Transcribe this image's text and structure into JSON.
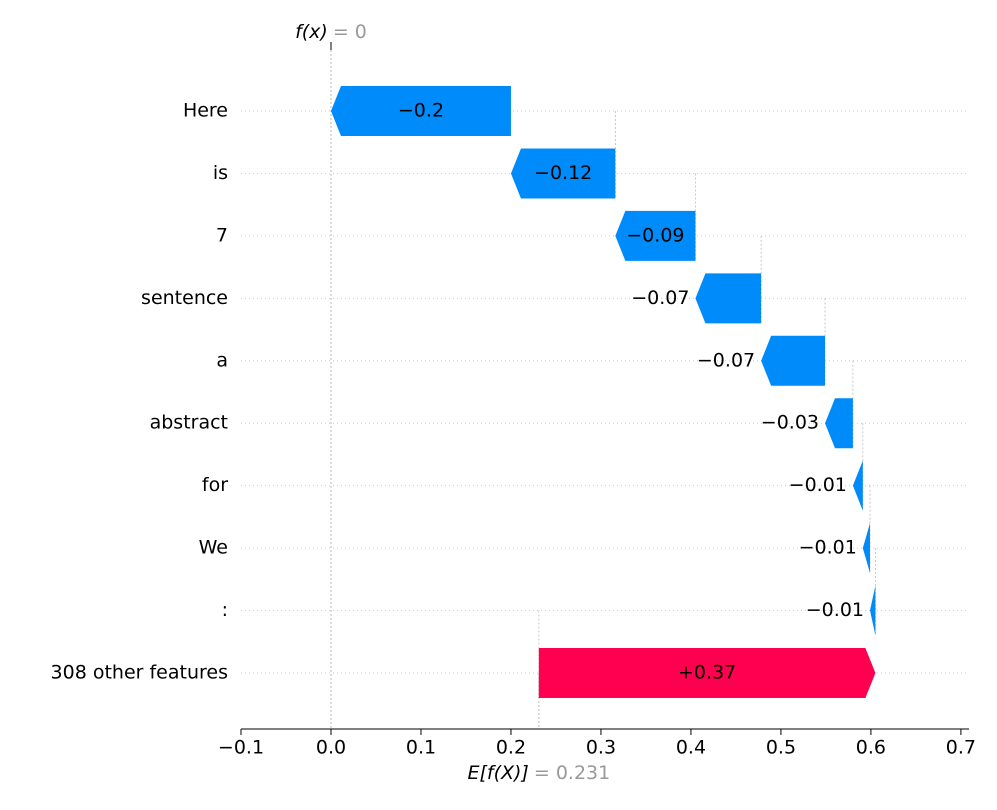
{
  "chart_data": {
    "type": "waterfall",
    "categories": [
      "Here",
      "is",
      "7",
      "sentence",
      "a",
      "abstract",
      "for",
      "We",
      ":",
      "308 other features"
    ],
    "values": [
      -0.2,
      -0.116,
      -0.089,
      -0.073,
      -0.071,
      -0.031,
      -0.011,
      -0.008,
      -0.006,
      0.374
    ],
    "value_labels": [
      "−0.2",
      "−0.12",
      "−0.09",
      "−0.07",
      "−0.07",
      "−0.03",
      "−0.01",
      "−0.01",
      "−0.01",
      "+0.37"
    ],
    "positive_color": "#ff0051",
    "negative_color": "#008bfb",
    "output": {
      "label": "f(x)",
      "value": 0,
      "value_label": "= 0"
    },
    "base": {
      "label": "E[f(X)]",
      "value": 0.231,
      "value_label": "= 0.231"
    },
    "xlim": [
      -0.1,
      0.709
    ],
    "xticks": [
      {
        "value": -0.1,
        "label": "−0.1"
      },
      {
        "value": 0,
        "label": "0.0"
      },
      0.1,
      0.2,
      0.3,
      0.4,
      0.5,
      0.6,
      0.7
    ],
    "grid": true
  }
}
